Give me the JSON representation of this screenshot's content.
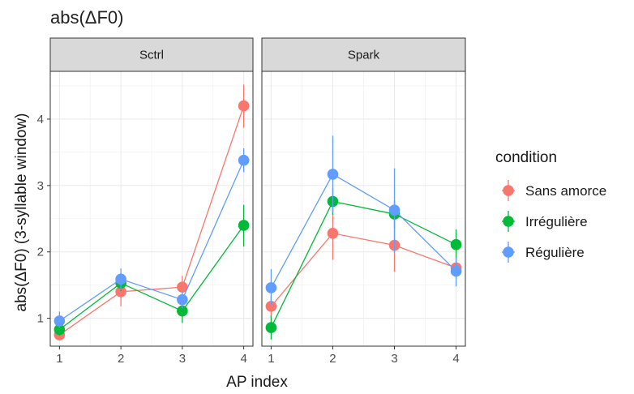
{
  "chart_data": {
    "type": "line",
    "title": "abs(ΔF0)",
    "xlabel": "AP index",
    "ylabel": "abs(ΔF0) (3-syllable window)",
    "x": [
      1,
      2,
      3,
      4
    ],
    "xticks": [
      "1",
      "2",
      "3",
      "4"
    ],
    "yticks": [
      "1",
      "2",
      "3",
      "4"
    ],
    "xlim": [
      0.85,
      4.15
    ],
    "ylim": [
      0.58,
      4.72
    ],
    "grid": true,
    "legend": {
      "title": "condition",
      "position": "right",
      "entries": [
        "Sans amorce",
        "Irrégulière",
        "Régulière"
      ]
    },
    "colors": {
      "Sans amorce": "#F8766D",
      "Irrégulière": "#00BA38",
      "Régulière": "#619CFF"
    },
    "panels": [
      {
        "label": "Sctrl",
        "series": [
          {
            "name": "Sans amorce",
            "values": [
              0.75,
              1.4,
              1.47,
              4.2
            ],
            "err_low": [
              0.68,
              1.18,
              1.3,
              3.87
            ],
            "err_high": [
              0.83,
              1.56,
              1.64,
              4.52
            ]
          },
          {
            "name": "Irrégulière",
            "values": [
              0.83,
              1.53,
              1.11,
              2.4
            ],
            "err_low": [
              0.74,
              1.41,
              0.93,
              2.08
            ],
            "err_high": [
              0.93,
              1.64,
              1.28,
              2.71
            ]
          },
          {
            "name": "Régulière",
            "values": [
              0.96,
              1.59,
              1.28,
              3.38
            ],
            "err_low": [
              0.86,
              1.43,
              1.15,
              3.2
            ],
            "err_high": [
              1.1,
              1.75,
              1.41,
              3.56
            ]
          }
        ]
      },
      {
        "label": "Spark",
        "series": [
          {
            "name": "Sans amorce",
            "values": [
              1.18,
              2.28,
              2.1,
              1.76
            ],
            "err_low": [
              1.02,
              1.88,
              1.7,
              1.6
            ],
            "err_high": [
              1.34,
              2.68,
              2.5,
              1.92
            ]
          },
          {
            "name": "Irrégulière",
            "values": [
              0.86,
              2.76,
              2.57,
              2.11
            ],
            "err_low": [
              0.68,
              2.56,
              2.36,
              1.88
            ],
            "err_high": [
              1.04,
              2.96,
              2.78,
              2.34
            ]
          },
          {
            "name": "Régulière",
            "values": [
              1.46,
              3.17,
              2.63,
              1.71
            ],
            "err_low": [
              1.2,
              2.59,
              1.99,
              1.48
            ],
            "err_high": [
              1.74,
              3.75,
              3.26,
              1.92
            ]
          }
        ]
      }
    ]
  }
}
